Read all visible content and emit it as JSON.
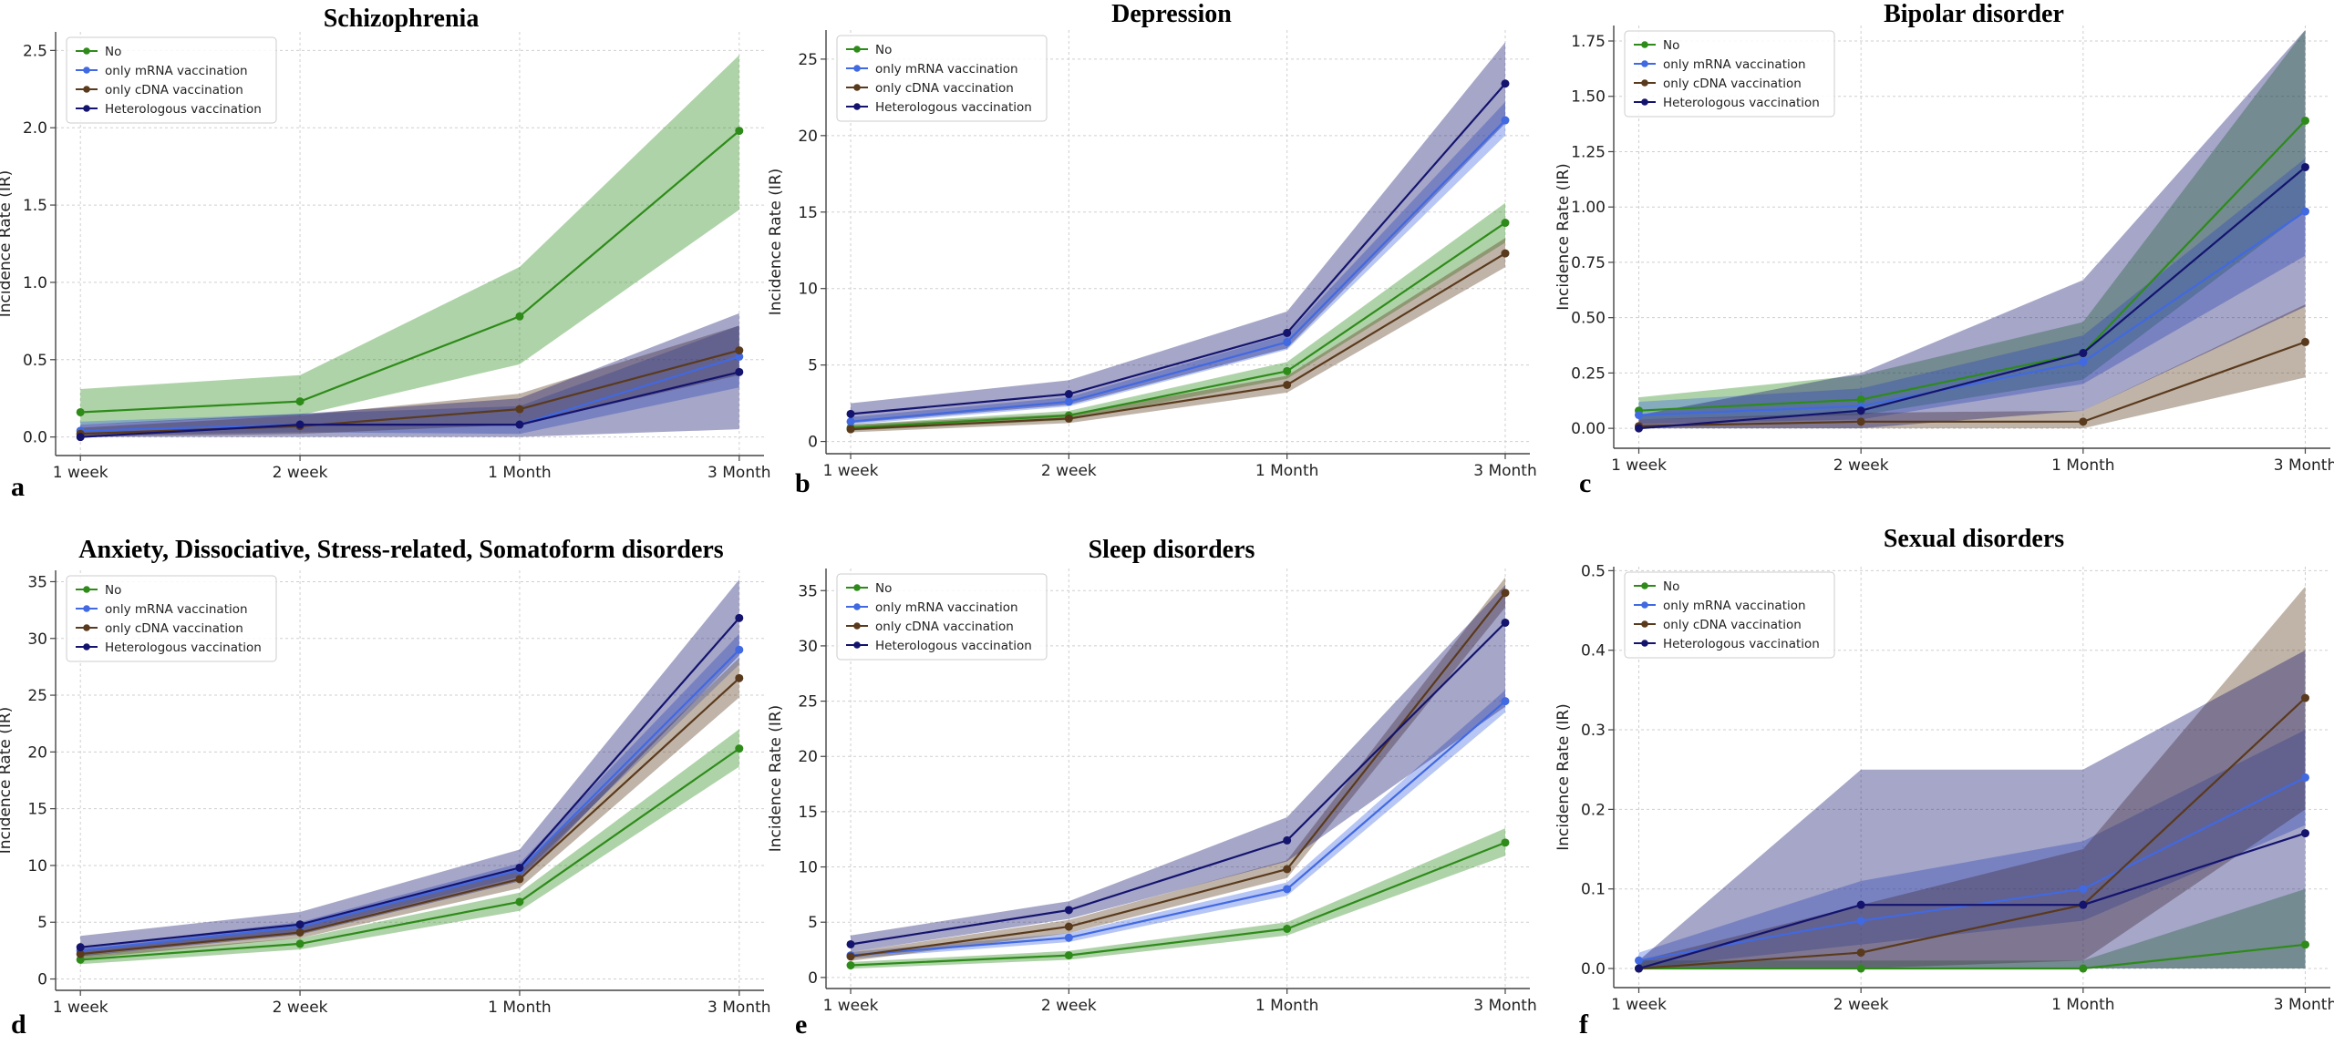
{
  "figure": {
    "colors": {
      "No": "#2e8b1a",
      "only mRNA vaccination": "#4169e1",
      "only cDNA vaccination": "#5a3a1c",
      "Heterologous vaccination": "#14146e"
    }
  },
  "chart_data": [
    {
      "panel": "a",
      "type": "line",
      "title": "Schizophrenia",
      "xlabel": "",
      "ylabel": "Incidence Rate (IR)",
      "categories": [
        "1 week",
        "2 week",
        "1 Month",
        "3 Month"
      ],
      "ylim": [
        -0.12,
        2.62
      ],
      "yticks": [
        0.0,
        0.5,
        1.0,
        1.5,
        2.0,
        2.5
      ],
      "ytick_labels": [
        "0.0",
        "0.5",
        "1.0",
        "1.5",
        "2.0",
        "2.5"
      ],
      "legend": "top-left",
      "grid": true,
      "series": [
        {
          "name": "No",
          "values": [
            0.16,
            0.23,
            0.78,
            1.98
          ],
          "lower": [
            0.08,
            0.14,
            0.47,
            1.47
          ],
          "upper": [
            0.31,
            0.4,
            1.1,
            2.47
          ]
        },
        {
          "name": "only mRNA vaccination",
          "values": [
            0.04,
            0.08,
            0.08,
            0.52
          ],
          "lower": [
            0.01,
            0.03,
            0.02,
            0.32
          ],
          "upper": [
            0.1,
            0.15,
            0.2,
            0.72
          ]
        },
        {
          "name": "only cDNA vaccination",
          "values": [
            0.02,
            0.07,
            0.18,
            0.56
          ],
          "lower": [
            0.0,
            0.02,
            0.08,
            0.4
          ],
          "upper": [
            0.06,
            0.14,
            0.28,
            0.72
          ]
        },
        {
          "name": "Heterologous vaccination",
          "values": [
            0.0,
            0.08,
            0.08,
            0.42
          ],
          "lower": [
            0.0,
            0.0,
            0.0,
            0.05
          ],
          "upper": [
            0.08,
            0.15,
            0.25,
            0.8
          ]
        }
      ]
    },
    {
      "panel": "b",
      "type": "line",
      "title": "Depression",
      "xlabel": "",
      "ylabel": "Incidence Rate (IR)",
      "categories": [
        "1 week",
        "2 week",
        "1 Month",
        "3 Month"
      ],
      "ylim": [
        -0.8,
        26.9
      ],
      "yticks": [
        0,
        5,
        10,
        15,
        20,
        25
      ],
      "ytick_labels": [
        "0",
        "5",
        "10",
        "15",
        "20",
        "25"
      ],
      "legend": "top-left",
      "grid": true,
      "series": [
        {
          "name": "No",
          "values": [
            0.9,
            1.7,
            4.6,
            14.3
          ],
          "lower": [
            0.7,
            1.4,
            4.1,
            13.0
          ],
          "upper": [
            1.1,
            2.0,
            5.2,
            15.6
          ]
        },
        {
          "name": "only mRNA vaccination",
          "values": [
            1.3,
            2.6,
            6.5,
            21.0
          ],
          "lower": [
            1.1,
            2.3,
            6.0,
            20.0
          ],
          "upper": [
            1.6,
            2.9,
            7.0,
            22.2
          ]
        },
        {
          "name": "only cDNA vaccination",
          "values": [
            0.8,
            1.5,
            3.7,
            12.3
          ],
          "lower": [
            0.6,
            1.2,
            3.2,
            11.4
          ],
          "upper": [
            1.1,
            1.8,
            4.3,
            13.3
          ]
        },
        {
          "name": "Heterologous vaccination",
          "values": [
            1.8,
            3.1,
            7.1,
            23.4
          ],
          "lower": [
            1.2,
            2.4,
            6.1,
            20.8
          ],
          "upper": [
            2.5,
            4.0,
            8.5,
            26.1
          ]
        }
      ]
    },
    {
      "panel": "c",
      "type": "line",
      "title": "Bipolar disorder",
      "xlabel": "",
      "ylabel": "Incidence Rate (IR)",
      "categories": [
        "1 week",
        "2 week",
        "1 Month",
        "3 Month"
      ],
      "ylim": [
        -0.09,
        1.82
      ],
      "yticks": [
        0.0,
        0.25,
        0.5,
        0.75,
        1.0,
        1.25,
        1.5,
        1.75
      ],
      "ytick_labels": [
        "0.00",
        "0.25",
        "0.50",
        "0.75",
        "1.00",
        "1.25",
        "1.50",
        "1.75"
      ],
      "legend": "top-left",
      "grid": true,
      "series": [
        {
          "name": "No",
          "values": [
            0.08,
            0.13,
            0.34,
            1.39
          ],
          "lower": [
            0.04,
            0.06,
            0.22,
            0.98
          ],
          "upper": [
            0.14,
            0.24,
            0.48,
            1.8
          ]
        },
        {
          "name": "only mRNA vaccination",
          "values": [
            0.06,
            0.1,
            0.3,
            0.98
          ],
          "lower": [
            0.02,
            0.04,
            0.2,
            0.78
          ],
          "upper": [
            0.12,
            0.18,
            0.42,
            1.22
          ]
        },
        {
          "name": "only cDNA vaccination",
          "values": [
            0.01,
            0.03,
            0.03,
            0.39
          ],
          "lower": [
            0.0,
            0.0,
            0.0,
            0.23
          ],
          "upper": [
            0.04,
            0.07,
            0.08,
            0.56
          ]
        },
        {
          "name": "Heterologous vaccination",
          "values": [
            0.0,
            0.08,
            0.34,
            1.18
          ],
          "lower": [
            0.0,
            0.0,
            0.08,
            0.55
          ],
          "upper": [
            0.06,
            0.25,
            0.67,
            1.8
          ]
        }
      ]
    },
    {
      "panel": "d",
      "type": "line",
      "title": "Anxiety, Dissociative, Stress-related, Somatoform disorders",
      "xlabel": "",
      "ylabel": "Incidence Rate (IR)",
      "categories": [
        "1 week",
        "2 week",
        "1 Month",
        "3 Month"
      ],
      "ylim": [
        -1.0,
        36.0
      ],
      "yticks": [
        0,
        5,
        10,
        15,
        20,
        25,
        30,
        35
      ],
      "ytick_labels": [
        "0",
        "5",
        "10",
        "15",
        "20",
        "25",
        "30",
        "35"
      ],
      "legend": "top-left",
      "grid": true,
      "series": [
        {
          "name": "No",
          "values": [
            1.7,
            3.1,
            6.8,
            20.3
          ],
          "lower": [
            1.3,
            2.6,
            6.0,
            18.7
          ],
          "upper": [
            2.1,
            3.6,
            7.6,
            22.0
          ]
        },
        {
          "name": "only mRNA vaccination",
          "values": [
            2.5,
            4.6,
            9.6,
            29.0
          ],
          "lower": [
            2.2,
            4.2,
            9.0,
            27.7
          ],
          "upper": [
            2.8,
            5.0,
            10.2,
            30.4
          ]
        },
        {
          "name": "only cDNA vaccination",
          "values": [
            2.2,
            4.1,
            8.8,
            26.5
          ],
          "lower": [
            1.8,
            3.6,
            8.0,
            24.8
          ],
          "upper": [
            2.6,
            4.6,
            9.6,
            28.3
          ]
        },
        {
          "name": "Heterologous vaccination",
          "values": [
            2.8,
            4.8,
            9.8,
            31.8
          ],
          "lower": [
            2.0,
            3.9,
            8.6,
            28.5
          ],
          "upper": [
            3.8,
            5.9,
            11.4,
            35.2
          ]
        }
      ]
    },
    {
      "panel": "e",
      "type": "line",
      "title": "Sleep disorders",
      "xlabel": "",
      "ylabel": "Incidence Rate (IR)",
      "categories": [
        "1 week",
        "2 week",
        "1 Month",
        "3 Month"
      ],
      "ylim": [
        -1.0,
        37.0
      ],
      "yticks": [
        0,
        5,
        10,
        15,
        20,
        25,
        30,
        35
      ],
      "ytick_labels": [
        "0",
        "5",
        "10",
        "15",
        "20",
        "25",
        "30",
        "35"
      ],
      "legend": "top-left",
      "grid": true,
      "series": [
        {
          "name": "No",
          "values": [
            1.1,
            2.0,
            4.4,
            12.2
          ],
          "lower": [
            0.8,
            1.6,
            3.8,
            11.0
          ],
          "upper": [
            1.4,
            2.4,
            5.0,
            13.5
          ]
        },
        {
          "name": "only mRNA vaccination",
          "values": [
            2.0,
            3.6,
            8.0,
            25.0
          ],
          "lower": [
            1.7,
            3.2,
            7.4,
            24.0
          ],
          "upper": [
            2.3,
            4.0,
            8.6,
            26.0
          ]
        },
        {
          "name": "only cDNA vaccination",
          "values": [
            1.9,
            4.6,
            9.8,
            34.8
          ],
          "lower": [
            1.5,
            4.0,
            9.0,
            33.5
          ],
          "upper": [
            2.3,
            5.2,
            10.6,
            36.2
          ]
        },
        {
          "name": "Heterologous vaccination",
          "values": [
            3.0,
            6.1,
            12.4,
            32.1
          ],
          "lower": [
            2.3,
            5.3,
            10.5,
            24.5
          ],
          "upper": [
            3.8,
            6.9,
            14.5,
            35.5
          ]
        }
      ]
    },
    {
      "panel": "f",
      "type": "line",
      "title": "Sexual disorders",
      "xlabel": "",
      "ylabel": "Incidence Rate (IR)",
      "categories": [
        "1 week",
        "2 week",
        "1 Month",
        "3 Month"
      ],
      "ylim": [
        -0.024,
        0.505
      ],
      "yticks": [
        0.0,
        0.1,
        0.2,
        0.3,
        0.4,
        0.5
      ],
      "ytick_labels": [
        "0.0",
        "0.1",
        "0.2",
        "0.3",
        "0.4",
        "0.5"
      ],
      "legend": "top-left",
      "grid": true,
      "series": [
        {
          "name": "No",
          "values": [
            0.0,
            0.0,
            0.0,
            0.03
          ],
          "lower": [
            0.0,
            0.0,
            0.0,
            0.0
          ],
          "upper": [
            0.01,
            0.01,
            0.01,
            0.1
          ]
        },
        {
          "name": "only mRNA vaccination",
          "values": [
            0.01,
            0.06,
            0.1,
            0.24
          ],
          "lower": [
            0.0,
            0.03,
            0.06,
            0.18
          ],
          "upper": [
            0.02,
            0.11,
            0.16,
            0.3
          ]
        },
        {
          "name": "only cDNA vaccination",
          "values": [
            0.0,
            0.02,
            0.08,
            0.34
          ],
          "lower": [
            0.0,
            0.0,
            0.01,
            0.2
          ],
          "upper": [
            0.01,
            0.08,
            0.15,
            0.48
          ]
        },
        {
          "name": "Heterologous vaccination",
          "values": [
            0.0,
            0.08,
            0.08,
            0.17
          ],
          "lower": [
            0.0,
            0.0,
            0.0,
            0.0
          ],
          "upper": [
            0.01,
            0.25,
            0.25,
            0.4
          ]
        }
      ]
    }
  ]
}
